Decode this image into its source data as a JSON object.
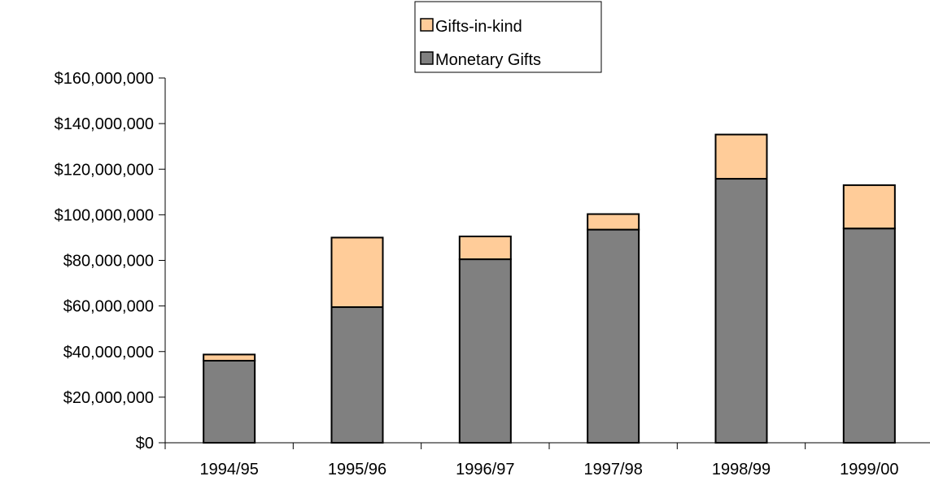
{
  "chart_data": {
    "type": "bar",
    "stacked": true,
    "categories": [
      "1994/95",
      "1995/96",
      "1996/97",
      "1997/98",
      "1998/99",
      "1999/00"
    ],
    "series": [
      {
        "name": "Monetary Gifts",
        "color": "#808080",
        "values": [
          36000000,
          59500000,
          80500000,
          93500000,
          115800000,
          94000000
        ]
      },
      {
        "name": "Gifts-in-kind",
        "color": "#FFCC99",
        "values": [
          2700000,
          30500000,
          10000000,
          6800000,
          19400000,
          19000000
        ]
      }
    ],
    "legend_order": [
      "Gifts-in-kind",
      "Monetary Gifts"
    ],
    "ylim": [
      0,
      160000000
    ],
    "y_ticks": [
      0,
      20000000,
      40000000,
      60000000,
      80000000,
      100000000,
      120000000,
      140000000,
      160000000
    ],
    "y_tick_labels": [
      "$0",
      "$20,000,000",
      "$40,000,000",
      "$60,000,000",
      "$80,000,000",
      "$100,000,000",
      "$120,000,000",
      "$140,000,000",
      "$160,000,000"
    ],
    "title": "",
    "xlabel": "",
    "ylabel": "",
    "grid": false,
    "legend_position": "top-center"
  }
}
